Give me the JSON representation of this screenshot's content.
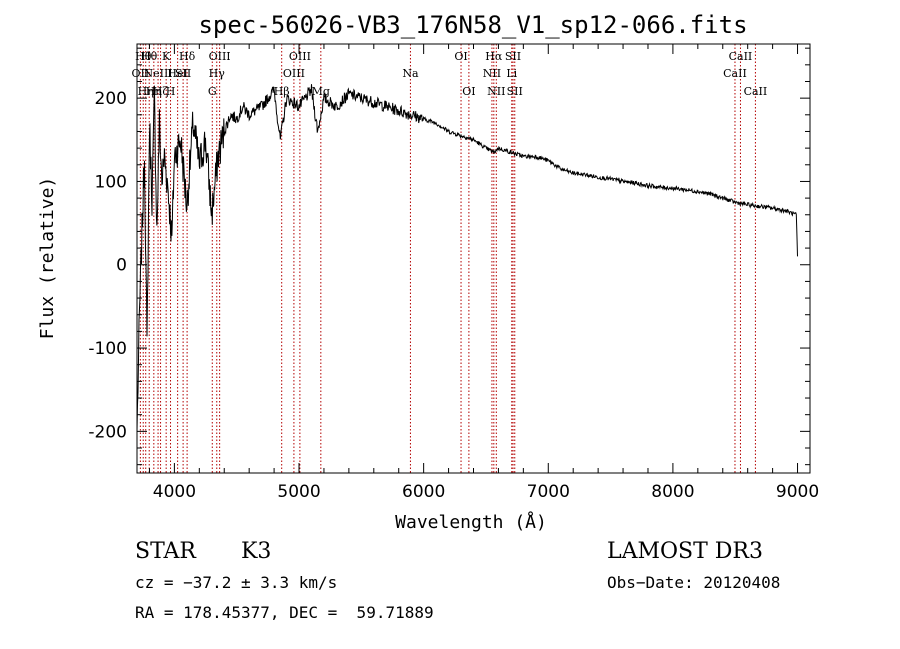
{
  "chart_data": {
    "type": "line",
    "title": "spec-56026-VB3_176N58_V1_sp12-066.fits",
    "xlabel": "Wavelength (Å)",
    "ylabel": "Flux (relative)",
    "xlim": [
      3700,
      9100
    ],
    "ylim": [
      -250,
      265
    ],
    "xticks": [
      4000,
      5000,
      6000,
      7000,
      8000,
      9000
    ],
    "yticks": [
      -200,
      -100,
      0,
      100,
      200
    ],
    "grid": false,
    "line_color": "#000000",
    "marker_color": "#b30000",
    "series": [
      {
        "name": "spectrum",
        "x": [
          3700,
          3720,
          3740,
          3760,
          3780,
          3800,
          3820,
          3840,
          3860,
          3880,
          3900,
          3920,
          3950,
          3980,
          4000,
          4050,
          4100,
          4150,
          4200,
          4250,
          4300,
          4350,
          4400,
          4450,
          4500,
          4550,
          4600,
          4700,
          4800,
          4850,
          4900,
          5000,
          5100,
          5150,
          5200,
          5300,
          5400,
          5500,
          5600,
          5700,
          5800,
          5900,
          6000,
          6100,
          6200,
          6300,
          6400,
          6500,
          6563,
          6600,
          6700,
          6800,
          6900,
          7000,
          7100,
          7200,
          7300,
          7400,
          7500,
          7600,
          7700,
          7800,
          7900,
          8000,
          8100,
          8200,
          8300,
          8400,
          8500,
          8600,
          8700,
          8800,
          8900,
          8990,
          9000
        ],
        "y": [
          -200,
          -60,
          40,
          130,
          -100,
          170,
          80,
          200,
          40,
          170,
          100,
          130,
          90,
          30,
          130,
          150,
          70,
          170,
          120,
          150,
          60,
          130,
          160,
          180,
          175,
          190,
          180,
          190,
          210,
          150,
          200,
          190,
          210,
          160,
          200,
          190,
          205,
          200,
          195,
          190,
          185,
          180,
          175,
          170,
          160,
          155,
          150,
          140,
          135,
          140,
          135,
          130,
          130,
          125,
          115,
          110,
          108,
          105,
          103,
          100,
          98,
          95,
          93,
          92,
          90,
          88,
          85,
          80,
          75,
          72,
          70,
          68,
          65,
          60,
          10
        ]
      }
    ],
    "lines": [
      {
        "w": 3727,
        "label": "OII",
        "row": 2
      },
      {
        "w": 3750,
        "label": "Hθ",
        "row": 1
      },
      {
        "w": 3770,
        "label": "Hη",
        "row": 3
      },
      {
        "w": 3798,
        "label": "Hθ",
        "row": 1
      },
      {
        "w": 3835,
        "label": "Hη",
        "row": 3
      },
      {
        "w": 3869,
        "label": "NeIII",
        "row": 2
      },
      {
        "w": 3889,
        "label": "Hζ",
        "row": 3
      },
      {
        "w": 3934,
        "label": "K",
        "row": 1
      },
      {
        "w": 3969,
        "label": "H",
        "row": 3
      },
      {
        "w": 4026,
        "label": "HeI",
        "row": 2
      },
      {
        "w": 4070,
        "label": "SII",
        "row": 2
      },
      {
        "w": 4102,
        "label": "Hδ",
        "row": 1
      },
      {
        "w": 4304,
        "label": "G",
        "row": 3
      },
      {
        "w": 4340,
        "label": "Hγ",
        "row": 2
      },
      {
        "w": 4363,
        "label": "OIII",
        "row": 1
      },
      {
        "w": 4861,
        "label": "Hβ",
        "row": 3
      },
      {
        "w": 4959,
        "label": "OIII",
        "row": 2
      },
      {
        "w": 5007,
        "label": "OIII",
        "row": 1
      },
      {
        "w": 5175,
        "label": "Mg",
        "row": 3
      },
      {
        "w": 5894,
        "label": "Na",
        "row": 2
      },
      {
        "w": 6300,
        "label": "OI",
        "row": 1
      },
      {
        "w": 6363,
        "label": "OI",
        "row": 3
      },
      {
        "w": 6548,
        "label": "NII",
        "row": 2
      },
      {
        "w": 6563,
        "label": "Hα",
        "row": 1
      },
      {
        "w": 6583,
        "label": "NII",
        "row": 3
      },
      {
        "w": 6707,
        "label": "Li",
        "row": 2
      },
      {
        "w": 6717,
        "label": "SII",
        "row": 1
      },
      {
        "w": 6731,
        "label": "SII",
        "row": 3
      },
      {
        "w": 8498,
        "label": "CaII",
        "row": 2
      },
      {
        "w": 8542,
        "label": "CaII",
        "row": 1
      },
      {
        "w": 8662,
        "label": "CaII",
        "row": 3
      }
    ]
  },
  "info": {
    "class": "STAR",
    "subclass": "K3",
    "survey": "LAMOST DR3",
    "cz": "cz = −37.2 ± 3.3 km/s",
    "obs_date": "Obs−Date: 20120408",
    "radec": "RA = 178.45377, DEC =  59.71889"
  }
}
